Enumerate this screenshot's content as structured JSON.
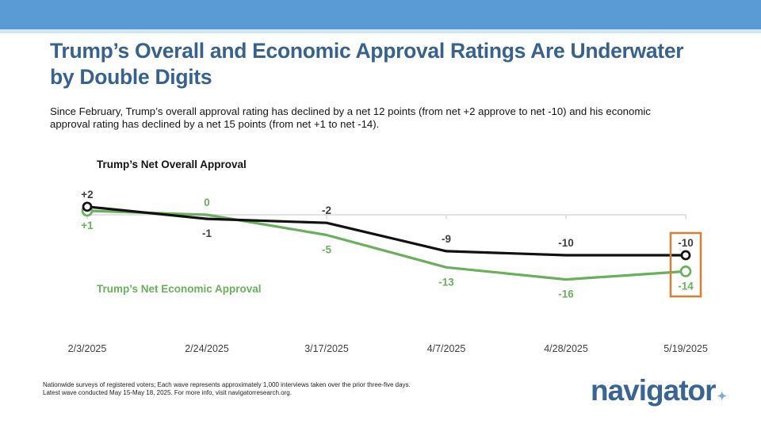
{
  "title": {
    "line1": "Trump’s Overall and Economic Approval Ratings Are Underwater",
    "line2": "by Double Digits"
  },
  "subtitle": {
    "line1": "Since February, Trump’s overall approval rating has declined by a net 12 points (from net +2 approve to net -10) and his economic",
    "line2": "approval rating has declined by a net 15 points (from net +1 to net -14)."
  },
  "footer": {
    "line1": "Nationwide surveys of registered voters; Each wave represents approximately 1,000 interviews taken over the prior three-five days.",
    "line2": "Latest wave conducted May 15-May 18, 2025. For more info, visit navigatorresearch.org."
  },
  "logo": {
    "text": "navigator",
    "star": "✦"
  },
  "colors": {
    "header_bar": "#5b9bd5",
    "header_accent_strip": "#d3e4f3",
    "title_blue": "#38618c",
    "overall_line": "#111111",
    "overall_label": "#3f3f3f",
    "economic_green": "#6aae5e",
    "highlight_orange": "#d0823a",
    "gridline_gray": "#d9d9d9",
    "axis_label_gray": "#3f3f3f"
  },
  "chart_data": {
    "type": "line",
    "x": [
      "2/3/2025",
      "2/24/2025",
      "3/17/2025",
      "4/7/2025",
      "4/28/2025",
      "5/19/2025"
    ],
    "series": [
      {
        "name": "Trump’s Net Overall Approval",
        "values": [
          2,
          -1,
          -2,
          -9,
          -10,
          -10
        ],
        "point_labels": [
          "+2",
          "-1",
          "-2",
          "-9",
          "-10",
          "-10"
        ],
        "color": "#111111",
        "label_color": "#3f3f3f"
      },
      {
        "name": "Trump’s Net Economic Approval",
        "values": [
          1,
          0,
          -5,
          -13,
          -16,
          -14
        ],
        "point_labels": [
          "+1",
          "0",
          "-5",
          "-13",
          "-16",
          "-14"
        ],
        "color": "#6aae5e",
        "label_color": "#6aae5e"
      }
    ],
    "ylim": [
      -18,
      4
    ],
    "zero_gridline": true,
    "grid": "zero-line-with-category-ticks",
    "markers": "open-circles-on-first-and-last-points",
    "highlight_last_wave": true,
    "legend_position": "labels-near-lines"
  }
}
